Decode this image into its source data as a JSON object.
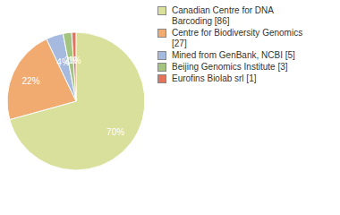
{
  "chart_data": {
    "type": "pie",
    "categories": [
      "Canadian Centre for DNA Barcoding [86]",
      "Centre for Biodiversity Genomics [27]",
      "Mined from GenBank, NCBI [5]",
      "Beijing Genomics Institute [3]",
      "Eurofins Biolab srl [1]"
    ],
    "values": [
      70,
      22,
      4,
      2,
      1
    ],
    "value_labels": [
      "70%",
      "22%",
      "4%",
      "2%",
      "1%"
    ],
    "data_labels": true,
    "colors": [
      "#d9e09c",
      "#f1aa70",
      "#a6badf",
      "#a2c47e",
      "#e5735b"
    ]
  }
}
